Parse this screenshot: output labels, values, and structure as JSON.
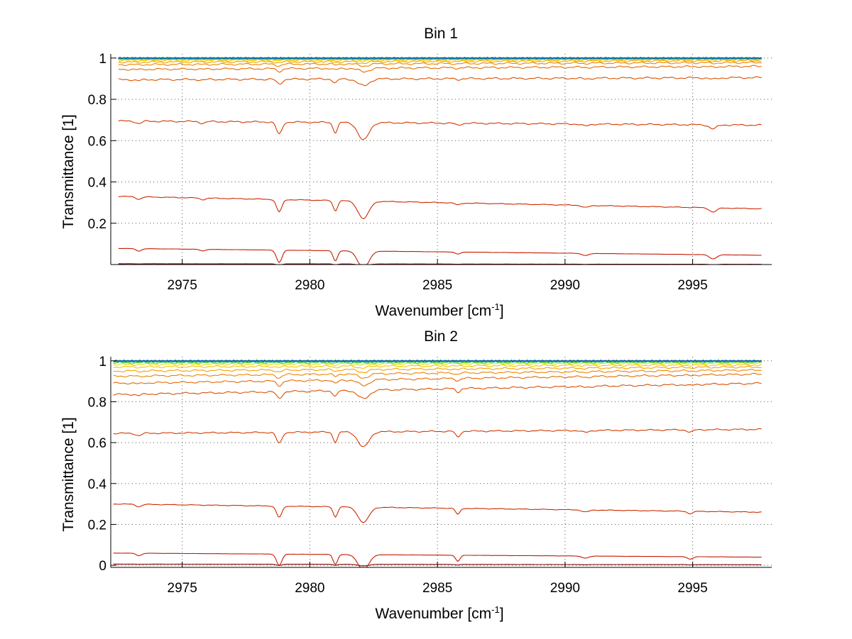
{
  "chart_data": [
    {
      "type": "line",
      "title": "Bin 1",
      "xlabel": "Wavenumber [cm",
      "xlabel_sup": "-1",
      "xlabel_suffix": "]",
      "ylabel": "Transmittance [1]",
      "xlim": [
        2972.2,
        2998.1
      ],
      "ylim": [
        0.0,
        1.02
      ],
      "xticks": [
        2975,
        2980,
        2985,
        2990,
        2995
      ],
      "xtick_labels": [
        "2975",
        "2980",
        "2985",
        "2990",
        "2995"
      ],
      "yticks": [
        0.2,
        0.4,
        0.6,
        0.8,
        1.0
      ],
      "ytick_labels": [
        "0.2",
        "0.4",
        "0.6",
        "0.8",
        "1"
      ],
      "grid": "dotted",
      "x_range": [
        2972.5,
        2997.7
      ],
      "dips": [
        {
          "x": 2973.3,
          "depth": 0.012,
          "width": 0.15
        },
        {
          "x": 2975.8,
          "depth": 0.008,
          "width": 0.15
        },
        {
          "x": 2978.8,
          "depth": 0.06,
          "width": 0.15
        },
        {
          "x": 2981.0,
          "depth": 0.05,
          "width": 0.12
        },
        {
          "x": 2982.1,
          "depth": 0.085,
          "width": 0.3
        },
        {
          "x": 2985.8,
          "depth": 0.01,
          "width": 0.15
        },
        {
          "x": 2990.8,
          "depth": 0.01,
          "width": 0.2
        },
        {
          "x": 2995.8,
          "depth": 0.02,
          "width": 0.2
        }
      ],
      "series": [
        {
          "color": "#7f0000",
          "start": 0.004,
          "end": 0.001
        },
        {
          "color": "#c41a00",
          "start": 0.078,
          "end": 0.045
        },
        {
          "color": "#cc2a00",
          "start": 0.33,
          "end": 0.27
        },
        {
          "color": "#d43a00",
          "start": 0.695,
          "end": 0.675
        },
        {
          "color": "#dd5000",
          "start": 0.895,
          "end": 0.905
        },
        {
          "color": "#e66a00",
          "start": 0.945,
          "end": 0.96
        },
        {
          "color": "#ee8400",
          "start": 0.968,
          "end": 0.978
        },
        {
          "color": "#f5a000",
          "start": 0.98,
          "end": 0.987
        },
        {
          "color": "#f8c200",
          "start": 0.988,
          "end": 0.992
        },
        {
          "color": "#e0e000",
          "start": 0.993,
          "end": 0.995
        },
        {
          "color": "#8fd400",
          "start": 0.996,
          "end": 0.997
        },
        {
          "color": "#2ec07a",
          "start": 0.998,
          "end": 0.998
        },
        {
          "color": "#1aa8c8",
          "start": 0.999,
          "end": 0.999
        },
        {
          "color": "#1060a0",
          "start": 1.0,
          "end": 1.0
        }
      ]
    },
    {
      "type": "line",
      "title": "Bin 2",
      "xlabel": "Wavenumber [cm",
      "xlabel_sup": "-1",
      "xlabel_suffix": "]",
      "ylabel": "Transmittance [1]",
      "xlim": [
        2972.2,
        2998.1
      ],
      "ylim": [
        -0.01,
        1.02
      ],
      "xticks": [
        2975,
        2980,
        2985,
        2990,
        2995
      ],
      "xtick_labels": [
        "2975",
        "2980",
        "2985",
        "2990",
        "2995"
      ],
      "yticks": [
        0.0,
        0.2,
        0.4,
        0.6,
        0.8,
        1.0
      ],
      "ytick_labels": [
        "0",
        "0.2",
        "0.4",
        "0.6",
        "0.8",
        "1"
      ],
      "grid": "dotted",
      "x_range": [
        2972.3,
        2997.7
      ],
      "dips": [
        {
          "x": 2973.3,
          "depth": 0.012,
          "width": 0.15
        },
        {
          "x": 2978.8,
          "depth": 0.055,
          "width": 0.15
        },
        {
          "x": 2981.0,
          "depth": 0.05,
          "width": 0.12
        },
        {
          "x": 2982.1,
          "depth": 0.075,
          "width": 0.3
        },
        {
          "x": 2985.8,
          "depth": 0.03,
          "width": 0.12
        },
        {
          "x": 2990.8,
          "depth": 0.01,
          "width": 0.2
        },
        {
          "x": 2994.9,
          "depth": 0.012,
          "width": 0.15
        }
      ],
      "series": [
        {
          "color": "#7f0000",
          "start": 0.006,
          "end": 0.003
        },
        {
          "color": "#c41a00",
          "start": 0.06,
          "end": 0.04
        },
        {
          "color": "#cc2a00",
          "start": 0.3,
          "end": 0.26
        },
        {
          "color": "#d43a00",
          "start": 0.645,
          "end": 0.665
        },
        {
          "color": "#dd5000",
          "start": 0.835,
          "end": 0.89
        },
        {
          "color": "#e66a00",
          "start": 0.89,
          "end": 0.935
        },
        {
          "color": "#ee8400",
          "start": 0.925,
          "end": 0.955
        },
        {
          "color": "#f5a000",
          "start": 0.95,
          "end": 0.97
        },
        {
          "color": "#f8c200",
          "start": 0.97,
          "end": 0.98
        },
        {
          "color": "#e0e000",
          "start": 0.982,
          "end": 0.988
        },
        {
          "color": "#8fd400",
          "start": 0.99,
          "end": 0.993
        },
        {
          "color": "#2ec07a",
          "start": 0.995,
          "end": 0.996
        },
        {
          "color": "#1aa8c8",
          "start": 0.998,
          "end": 0.998
        },
        {
          "color": "#1060a0",
          "start": 1.0,
          "end": 1.0
        }
      ]
    }
  ]
}
